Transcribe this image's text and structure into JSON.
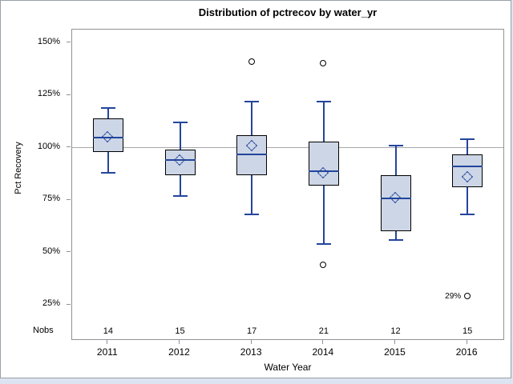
{
  "title": "Distribution of pctrecov by water_yr",
  "y_axis": {
    "label": "Pct Recovery",
    "nobs_header": "Nobs",
    "ticks": [
      {
        "value": 150,
        "label": "150%"
      },
      {
        "value": 125,
        "label": "125%"
      },
      {
        "value": 100,
        "label": "100%"
      },
      {
        "value": 75,
        "label": "75%"
      },
      {
        "value": 50,
        "label": "50%"
      },
      {
        "value": 25,
        "label": "25%"
      }
    ]
  },
  "x_axis": {
    "label": "Water Year"
  },
  "chart_data": {
    "type": "boxplot",
    "title": "Distribution of pctrecov by water_yr",
    "xlabel": "Water Year",
    "ylabel": "Pct Recovery",
    "categories": [
      "2011",
      "2012",
      "2013",
      "2014",
      "2015",
      "2016"
    ],
    "nobs": [
      14,
      15,
      17,
      21,
      12,
      15
    ],
    "reference_line_pct": 100,
    "y_tick_values_pct": [
      150,
      125,
      100,
      75,
      50,
      25
    ],
    "grid": false,
    "groups": [
      {
        "year": "2011",
        "nobs": "14",
        "whisker_low": 88,
        "q1": 98,
        "median": 105,
        "q3": 114,
        "whisker_high": 119,
        "mean": 105,
        "outliers": [],
        "outlier_labels": []
      },
      {
        "year": "2012",
        "nobs": "15",
        "whisker_low": 77,
        "q1": 87,
        "median": 94,
        "q3": 99,
        "whisker_high": 112,
        "mean": 94,
        "outliers": [],
        "outlier_labels": []
      },
      {
        "year": "2013",
        "nobs": "17",
        "whisker_low": 68,
        "q1": 87,
        "median": 97,
        "q3": 106,
        "whisker_high": 122,
        "mean": 101,
        "outliers": [
          141
        ],
        "outlier_labels": [
          ""
        ]
      },
      {
        "year": "2014",
        "nobs": "21",
        "whisker_low": 54,
        "q1": 82,
        "median": 89,
        "q3": 103,
        "whisker_high": 122,
        "mean": 88,
        "outliers": [
          140,
          44
        ],
        "outlier_labels": [
          "",
          ""
        ]
      },
      {
        "year": "2015",
        "nobs": "12",
        "whisker_low": 56,
        "q1": 60,
        "median": 76,
        "q3": 87,
        "whisker_high": 101,
        "mean": 76,
        "outliers": [],
        "outlier_labels": []
      },
      {
        "year": "2016",
        "nobs": "15",
        "whisker_low": 68,
        "q1": 81,
        "median": 91,
        "q3": 97,
        "whisker_high": 104,
        "mean": 86,
        "outliers": [
          29
        ],
        "outlier_labels": [
          "29%"
        ]
      }
    ],
    "colors": {
      "box_fill": "#ccd6e6",
      "box_border": "#000000",
      "whisker_median_mean": "#24459c",
      "reference_line": "#a8a8a8",
      "outlier_stroke": "#000000",
      "frame": "#8f9296"
    }
  }
}
